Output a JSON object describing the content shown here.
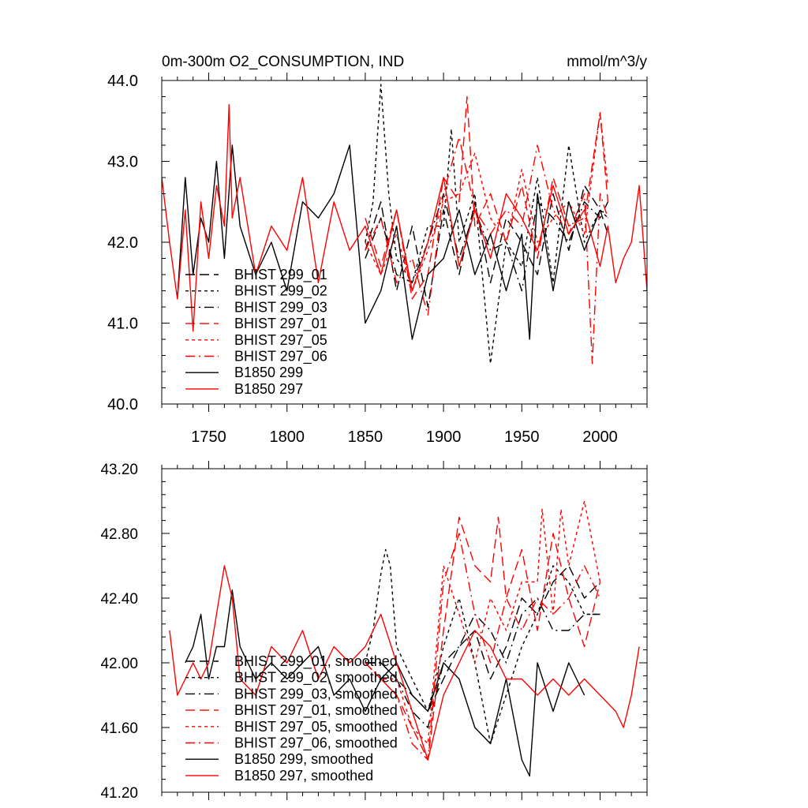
{
  "chart_data": [
    {
      "type": "line",
      "title": "0m-300m O2_CONSUMPTION, IND",
      "units": "mmol/m^3/y",
      "xlim": [
        1720,
        2030
      ],
      "ylim": [
        40.0,
        44.0
      ],
      "x_ticks": [
        1750,
        1800,
        1850,
        1900,
        1950,
        2000
      ],
      "x_tick_labels": [
        "1750",
        "1800",
        "1850",
        "1900",
        "1950",
        "2000"
      ],
      "y_ticks": [
        40.0,
        41.0,
        42.0,
        43.0,
        44.0
      ],
      "y_tick_labels": [
        "40.0",
        "41.0",
        "42.0",
        "43.0",
        "44.0"
      ],
      "legend_position": "bottom-left",
      "series": [
        {
          "name": "BHIST 299_01",
          "color": "#000000",
          "dash": "long-dash",
          "x": [
            1850,
            1860,
            1870,
            1880,
            1890,
            1900,
            1910,
            1920,
            1930,
            1940,
            1950,
            1960,
            1970,
            1980,
            1990,
            2000,
            2005
          ],
          "y": [
            41.9,
            42.5,
            41.4,
            42.2,
            41.2,
            42.4,
            41.6,
            42.5,
            41.5,
            42.3,
            42.0,
            41.6,
            42.6,
            41.9,
            42.7,
            42.4,
            42.1
          ]
        },
        {
          "name": "BHIST 299_02",
          "color": "#000000",
          "dash": "short-dash",
          "x": [
            1850,
            1855,
            1860,
            1865,
            1870,
            1880,
            1890,
            1900,
            1905,
            1910,
            1920,
            1930,
            1940,
            1950,
            1960,
            1970,
            1980,
            1990,
            2000,
            2005
          ],
          "y": [
            42.0,
            42.5,
            43.95,
            42.6,
            41.8,
            41.5,
            42.2,
            42.2,
            43.4,
            42.0,
            42.6,
            40.5,
            42.0,
            41.7,
            42.8,
            41.5,
            43.2,
            42.0,
            42.4,
            42.3
          ]
        },
        {
          "name": "BHIST 299_03",
          "color": "#000000",
          "dash": "dash-dot",
          "x": [
            1850,
            1860,
            1870,
            1880,
            1890,
            1900,
            1910,
            1920,
            1930,
            1940,
            1950,
            1960,
            1970,
            1980,
            1990,
            2000,
            2005
          ],
          "y": [
            41.8,
            42.3,
            41.6,
            41.5,
            42.0,
            42.6,
            41.8,
            42.4,
            41.9,
            42.0,
            41.4,
            42.5,
            42.3,
            42.0,
            42.5,
            42.3,
            42.5
          ]
        },
        {
          "name": "BHIST 297_01",
          "color": "#ff0000",
          "dash": "long-dash",
          "x": [
            1850,
            1860,
            1870,
            1880,
            1890,
            1900,
            1910,
            1915,
            1920,
            1930,
            1940,
            1950,
            1960,
            1970,
            1980,
            1990,
            2000,
            2005
          ],
          "y": [
            42.3,
            41.7,
            42.4,
            41.3,
            41.6,
            42.8,
            42.5,
            43.8,
            42.2,
            42.6,
            42.0,
            42.7,
            41.8,
            42.8,
            42.2,
            42.3,
            43.6,
            42.5
          ]
        },
        {
          "name": "BHIST 297_05",
          "color": "#ff0000",
          "dash": "short-dash",
          "x": [
            1850,
            1860,
            1870,
            1880,
            1890,
            1900,
            1910,
            1920,
            1930,
            1940,
            1950,
            1960,
            1970,
            1980,
            1990,
            2000,
            2005
          ],
          "y": [
            42.0,
            41.6,
            42.1,
            41.4,
            41.9,
            42.5,
            42.6,
            43.1,
            42.3,
            42.0,
            42.9,
            42.0,
            42.3,
            42.5,
            42.1,
            43.6,
            42.7
          ]
        },
        {
          "name": "BHIST 297_06",
          "color": "#ff0000",
          "dash": "dash-dot",
          "x": [
            1850,
            1860,
            1870,
            1880,
            1890,
            1900,
            1910,
            1920,
            1930,
            1940,
            1950,
            1960,
            1970,
            1980,
            1990,
            1995,
            2000,
            2005
          ],
          "y": [
            41.9,
            42.3,
            41.5,
            41.8,
            41.1,
            42.6,
            43.3,
            42.4,
            42.1,
            42.4,
            42.2,
            43.2,
            42.4,
            42.1,
            42.6,
            40.5,
            42.6,
            42.3
          ]
        },
        {
          "name": "B1850 299",
          "color": "#000000",
          "dash": "solid",
          "x": [
            1730,
            1735,
            1740,
            1745,
            1750,
            1755,
            1760,
            1765,
            1770,
            1780,
            1790,
            1800,
            1810,
            1820,
            1830,
            1840,
            1850,
            1860,
            1870,
            1880,
            1890,
            1900,
            1910,
            1920,
            1930,
            1940,
            1950,
            1955,
            1960,
            1970,
            1980,
            1990,
            2000
          ],
          "y": [
            41.3,
            42.8,
            41.6,
            42.3,
            42.0,
            43.0,
            41.8,
            43.2,
            42.2,
            41.6,
            42.0,
            41.4,
            42.5,
            42.3,
            42.6,
            43.2,
            41.0,
            41.4,
            42.2,
            40.8,
            41.6,
            41.8,
            42.4,
            41.6,
            42.1,
            41.4,
            42.1,
            40.8,
            42.6,
            41.4,
            42.5,
            41.9,
            42.4
          ]
        },
        {
          "name": "B1850 297",
          "color": "#ff0000",
          "dash": "solid",
          "x": [
            1720,
            1725,
            1730,
            1735,
            1740,
            1745,
            1750,
            1755,
            1760,
            1763,
            1765,
            1770,
            1780,
            1790,
            1800,
            1810,
            1820,
            1830,
            1840,
            1850,
            1860,
            1870,
            1880,
            1890,
            1900,
            1910,
            1920,
            1930,
            1940,
            1950,
            1960,
            1970,
            1980,
            1990,
            2000,
            2005,
            2010,
            2015,
            2020,
            2025,
            2030
          ],
          "y": [
            42.8,
            42.0,
            41.3,
            42.4,
            40.9,
            42.5,
            41.8,
            42.7,
            42.2,
            43.7,
            42.3,
            42.8,
            41.6,
            42.2,
            41.9,
            42.8,
            41.5,
            42.5,
            41.9,
            42.2,
            41.6,
            42.4,
            41.4,
            42.0,
            42.8,
            41.7,
            42.4,
            41.8,
            42.6,
            42.3,
            41.9,
            42.7,
            42.1,
            42.4,
            41.7,
            42.2,
            41.5,
            41.8,
            42.0,
            42.7,
            41.4
          ]
        }
      ]
    },
    {
      "type": "line",
      "title": "",
      "xlim": [
        1720,
        2030
      ],
      "ylim": [
        41.2,
        43.2
      ],
      "x_ticks": [
        1750,
        1800,
        1850,
        1900,
        1950,
        2000
      ],
      "x_tick_labels": [],
      "y_ticks": [
        41.2,
        41.6,
        42.0,
        42.4,
        42.8,
        43.2
      ],
      "y_tick_labels": [
        "41.20",
        "41.60",
        "42.00",
        "42.40",
        "42.80",
        "43.20"
      ],
      "legend_position": "bottom-left",
      "series": [
        {
          "name": "BHIST 299_01, smoothed",
          "color": "#000000",
          "dash": "long-dash",
          "x": [
            1850,
            1860,
            1870,
            1880,
            1890,
            1900,
            1910,
            1920,
            1930,
            1940,
            1950,
            1960,
            1970,
            1980,
            1990,
            2000
          ],
          "y": [
            42.0,
            42.0,
            41.9,
            41.8,
            41.7,
            41.9,
            42.1,
            42.2,
            41.9,
            42.1,
            42.4,
            42.3,
            42.5,
            42.6,
            42.4,
            42.5
          ]
        },
        {
          "name": "BHIST 299_02, smoothed",
          "color": "#000000",
          "dash": "short-dash",
          "x": [
            1850,
            1855,
            1860,
            1863,
            1866,
            1870,
            1880,
            1890,
            1900,
            1910,
            1920,
            1930,
            1940,
            1950,
            1960,
            1970,
            1980,
            1990,
            2000
          ],
          "y": [
            42.0,
            42.2,
            42.55,
            42.7,
            42.6,
            42.1,
            41.9,
            41.7,
            42.1,
            42.4,
            42.0,
            41.5,
            41.8,
            42.1,
            42.3,
            42.6,
            42.5,
            42.3,
            42.3
          ]
        },
        {
          "name": "BHIST 299_03, smoothed",
          "color": "#000000",
          "dash": "dash-dot",
          "x": [
            1850,
            1860,
            1870,
            1880,
            1890,
            1900,
            1910,
            1920,
            1930,
            1940,
            1950,
            1960,
            1970,
            1980,
            1990,
            2000
          ],
          "y": [
            42.0,
            42.0,
            41.9,
            41.7,
            41.6,
            42.0,
            42.1,
            42.3,
            42.2,
            42.0,
            42.3,
            42.4,
            42.2,
            42.2,
            42.3,
            42.3
          ]
        },
        {
          "name": "BHIST 297_01, smoothed",
          "color": "#ff0000",
          "dash": "long-dash",
          "x": [
            1850,
            1860,
            1870,
            1880,
            1890,
            1900,
            1910,
            1920,
            1930,
            1935,
            1940,
            1950,
            1960,
            1970,
            1980,
            1990,
            2000
          ],
          "y": [
            42.0,
            41.9,
            41.8,
            41.6,
            41.4,
            42.2,
            42.9,
            42.6,
            42.5,
            42.9,
            42.4,
            42.7,
            42.2,
            42.8,
            42.4,
            42.1,
            42.5
          ]
        },
        {
          "name": "BHIST 297_05, smoothed",
          "color": "#ff0000",
          "dash": "short-dash",
          "x": [
            1850,
            1860,
            1870,
            1880,
            1890,
            1900,
            1910,
            1920,
            1930,
            1940,
            1950,
            1960,
            1963,
            1970,
            1975,
            1980,
            1990,
            2000
          ],
          "y": [
            42.0,
            41.9,
            41.9,
            41.6,
            41.5,
            42.6,
            42.3,
            42.0,
            42.4,
            42.2,
            42.5,
            42.5,
            42.95,
            42.3,
            42.95,
            42.6,
            43.0,
            42.5
          ]
        },
        {
          "name": "BHIST 297_06, smoothed",
          "color": "#ff0000",
          "dash": "dash-dot",
          "x": [
            1850,
            1860,
            1870,
            1880,
            1890,
            1900,
            1910,
            1920,
            1930,
            1940,
            1950,
            1960,
            1970,
            1980,
            1990,
            2000
          ],
          "y": [
            42.0,
            41.9,
            41.8,
            41.5,
            41.4,
            42.5,
            42.8,
            42.3,
            42.0,
            42.4,
            42.2,
            42.4,
            42.3,
            42.4,
            42.6,
            42.4
          ]
        },
        {
          "name": "B1850 299, smoothed",
          "color": "#000000",
          "dash": "solid",
          "x": [
            1735,
            1740,
            1745,
            1750,
            1755,
            1760,
            1765,
            1770,
            1780,
            1790,
            1800,
            1810,
            1820,
            1830,
            1840,
            1850,
            1860,
            1870,
            1880,
            1890,
            1900,
            1910,
            1920,
            1930,
            1940,
            1950,
            1955,
            1960,
            1970,
            1980,
            1990
          ],
          "y": [
            42.0,
            42.1,
            42.3,
            41.9,
            42.1,
            42.1,
            42.45,
            42.1,
            41.9,
            42.0,
            41.9,
            42.0,
            42.1,
            41.8,
            41.9,
            41.7,
            41.9,
            42.0,
            41.8,
            41.7,
            42.0,
            41.9,
            41.6,
            41.5,
            41.9,
            41.4,
            41.3,
            42.0,
            41.7,
            42.0,
            41.8
          ]
        },
        {
          "name": "B1850 297, smoothed",
          "color": "#ff0000",
          "dash": "solid",
          "x": [
            1725,
            1730,
            1735,
            1740,
            1745,
            1750,
            1755,
            1760,
            1765,
            1770,
            1780,
            1790,
            1800,
            1810,
            1820,
            1830,
            1840,
            1850,
            1860,
            1870,
            1880,
            1890,
            1900,
            1910,
            1920,
            1930,
            1940,
            1950,
            1960,
            1970,
            1980,
            1990,
            2000,
            2010,
            2015,
            2020,
            2025
          ],
          "y": [
            42.2,
            41.8,
            41.9,
            42.0,
            41.9,
            42.0,
            42.3,
            42.6,
            42.4,
            41.9,
            41.8,
            42.1,
            42.0,
            42.2,
            41.9,
            42.1,
            42.0,
            42.1,
            42.3,
            42.0,
            41.7,
            41.4,
            41.8,
            42.0,
            42.2,
            42.1,
            41.9,
            41.9,
            41.8,
            41.9,
            41.8,
            41.9,
            41.8,
            41.7,
            41.6,
            41.8,
            42.1
          ]
        }
      ]
    }
  ]
}
